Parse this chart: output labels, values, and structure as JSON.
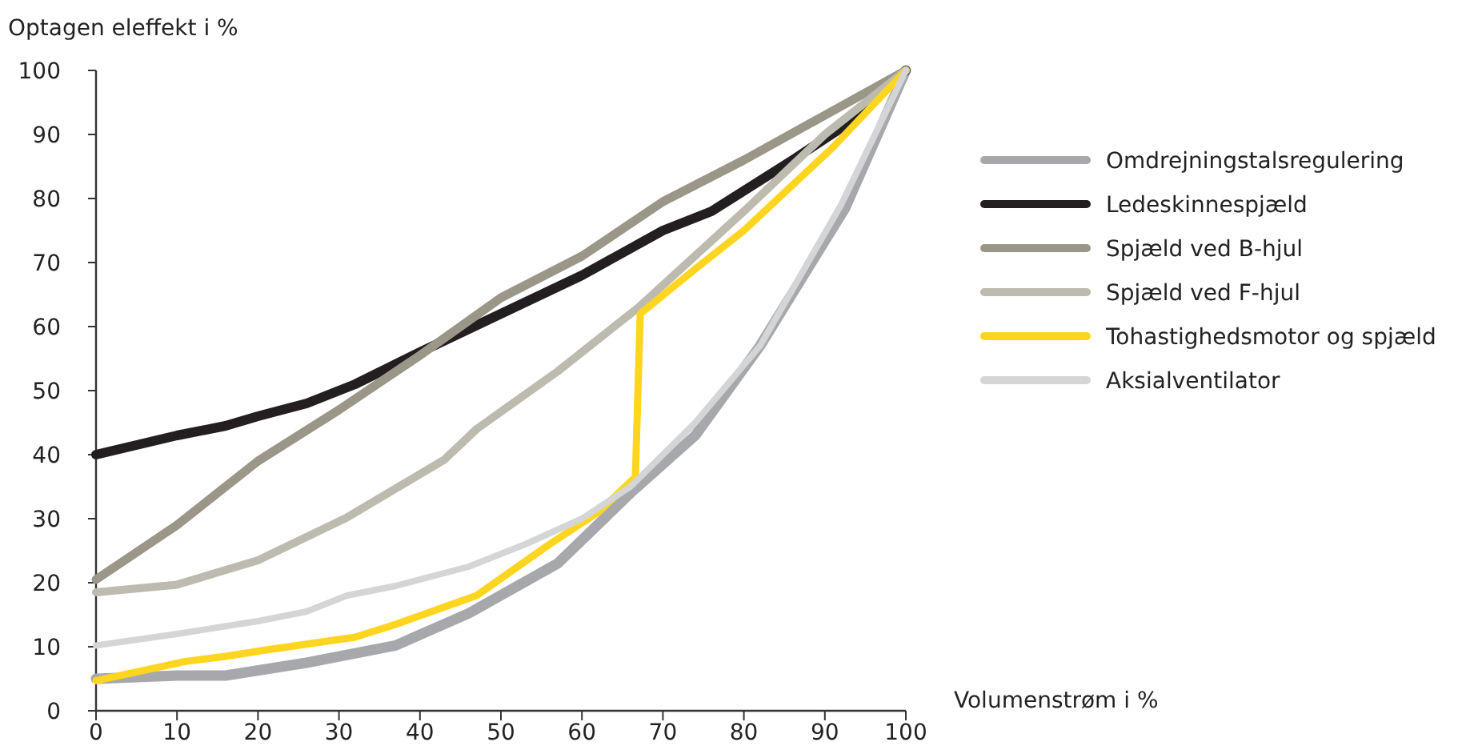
{
  "chart_data": {
    "type": "line",
    "xlabel": "Volumenstrøm i %",
    "ylabel": "Optagen eleffekt i %",
    "xlim": [
      0,
      100
    ],
    "ylim": [
      0,
      100
    ],
    "xticks": [
      0,
      10,
      20,
      30,
      40,
      50,
      60,
      70,
      80,
      90,
      100
    ],
    "yticks": [
      0,
      10,
      20,
      30,
      40,
      50,
      60,
      70,
      80,
      90,
      100
    ],
    "grid": false,
    "legend": "right",
    "marker": "none",
    "line_style": "solid",
    "series": [
      {
        "name": "Omdrejningstalsregulering",
        "color": "#a7a8ab",
        "x": [
          0,
          10,
          16,
          26,
          37,
          46,
          57,
          66,
          74,
          82,
          92.5,
          100
        ],
        "values": [
          5,
          5.5,
          5.5,
          7.5,
          10.2,
          15.2,
          23,
          34,
          43,
          57,
          78.5,
          100
        ]
      },
      {
        "name": "Ledeskinnespjæld",
        "color": "#231f20",
        "x": [
          0,
          10,
          16,
          20,
          26,
          32,
          40,
          50,
          60,
          70,
          76,
          86,
          92,
          100
        ],
        "values": [
          40,
          43,
          44.5,
          46,
          48,
          51,
          56,
          62,
          68,
          75,
          78,
          86,
          91,
          100
        ]
      },
      {
        "name": "Spjæld ved B-hjul",
        "color": "#9a9788",
        "x": [
          0,
          10,
          20,
          30,
          40,
          50,
          60,
          70,
          80,
          90,
          100
        ],
        "values": [
          20.5,
          29,
          39,
          47,
          55.5,
          64.5,
          71,
          79.5,
          86,
          93,
          100
        ]
      },
      {
        "name": "Spjæld ved F-hjul",
        "color": "#bdbab0",
        "x": [
          0,
          10,
          20,
          31,
          43,
          47,
          57,
          67,
          80,
          90,
          100
        ],
        "values": [
          18.5,
          19.7,
          23.5,
          30.2,
          39.2,
          44,
          53,
          63,
          78,
          90,
          100
        ]
      },
      {
        "name": "Tohastighedsmotor og spjæld",
        "color": "#ffd520",
        "x": [
          0,
          11,
          16,
          21,
          32,
          37,
          47,
          56,
          62,
          66.6,
          67.2,
          74,
          80,
          91,
          100
        ],
        "values": [
          4.7,
          7.7,
          8.5,
          9.5,
          11.5,
          13.5,
          18,
          26,
          31,
          36.5,
          62,
          69,
          75,
          88,
          100
        ]
      },
      {
        "name": "Aksialventilator",
        "color": "#d4d5d6",
        "x": [
          0,
          10,
          20,
          26,
          31,
          37,
          46,
          53,
          60,
          66,
          74,
          82,
          92,
          100
        ],
        "values": [
          10.2,
          12,
          14,
          15.5,
          18,
          19.5,
          22.5,
          26,
          30,
          35,
          45,
          57,
          79,
          100
        ]
      }
    ]
  }
}
